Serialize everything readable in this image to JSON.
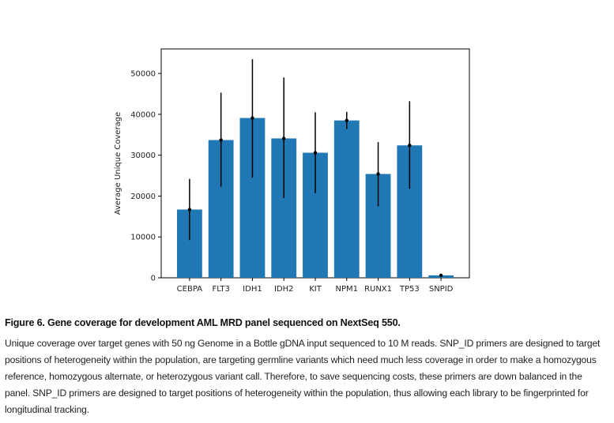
{
  "chart_data": {
    "type": "bar",
    "categories": [
      "CEBPA",
      "FLT3",
      "IDH1",
      "IDH2",
      "KIT",
      "NPM1",
      "RUNX1",
      "TP53",
      "SNPID"
    ],
    "values": [
      16700,
      33700,
      39100,
      34100,
      30600,
      38500,
      25400,
      32400,
      600
    ],
    "error_low": [
      9200,
      22300,
      24500,
      19500,
      20700,
      36400,
      17500,
      21800,
      300
    ],
    "error_high": [
      24200,
      45300,
      53500,
      49000,
      40500,
      40600,
      33200,
      43200,
      900
    ],
    "xlabel": "",
    "ylabel": "Average Unique Coverage",
    "ylim": [
      0,
      56000
    ],
    "yticks": [
      0,
      10000,
      20000,
      30000,
      40000,
      50000
    ],
    "bar_color": "#1f77b4",
    "error_color": "#000000",
    "grid": false,
    "legend": false
  },
  "caption": {
    "title": "Figure 6. Gene coverage for development AML MRD panel sequenced on NextSeq 550.",
    "body": "Unique coverage over target genes with 50 ng Genome in a Bottle gDNA input sequenced to 10 M reads. SNP_ID primers are designed to target positions of heterogeneity within the population, are targeting germline variants which need much less coverage in order to make a homozygous reference, homozygous alternate, or heterozygous variant call. Therefore, to save sequencing costs, these primers are down balanced in the panel. SNP_ID primers are designed to target positions of heterogeneity within the population, thus allowing each library to be fingerprinted for longitudinal tracking."
  }
}
